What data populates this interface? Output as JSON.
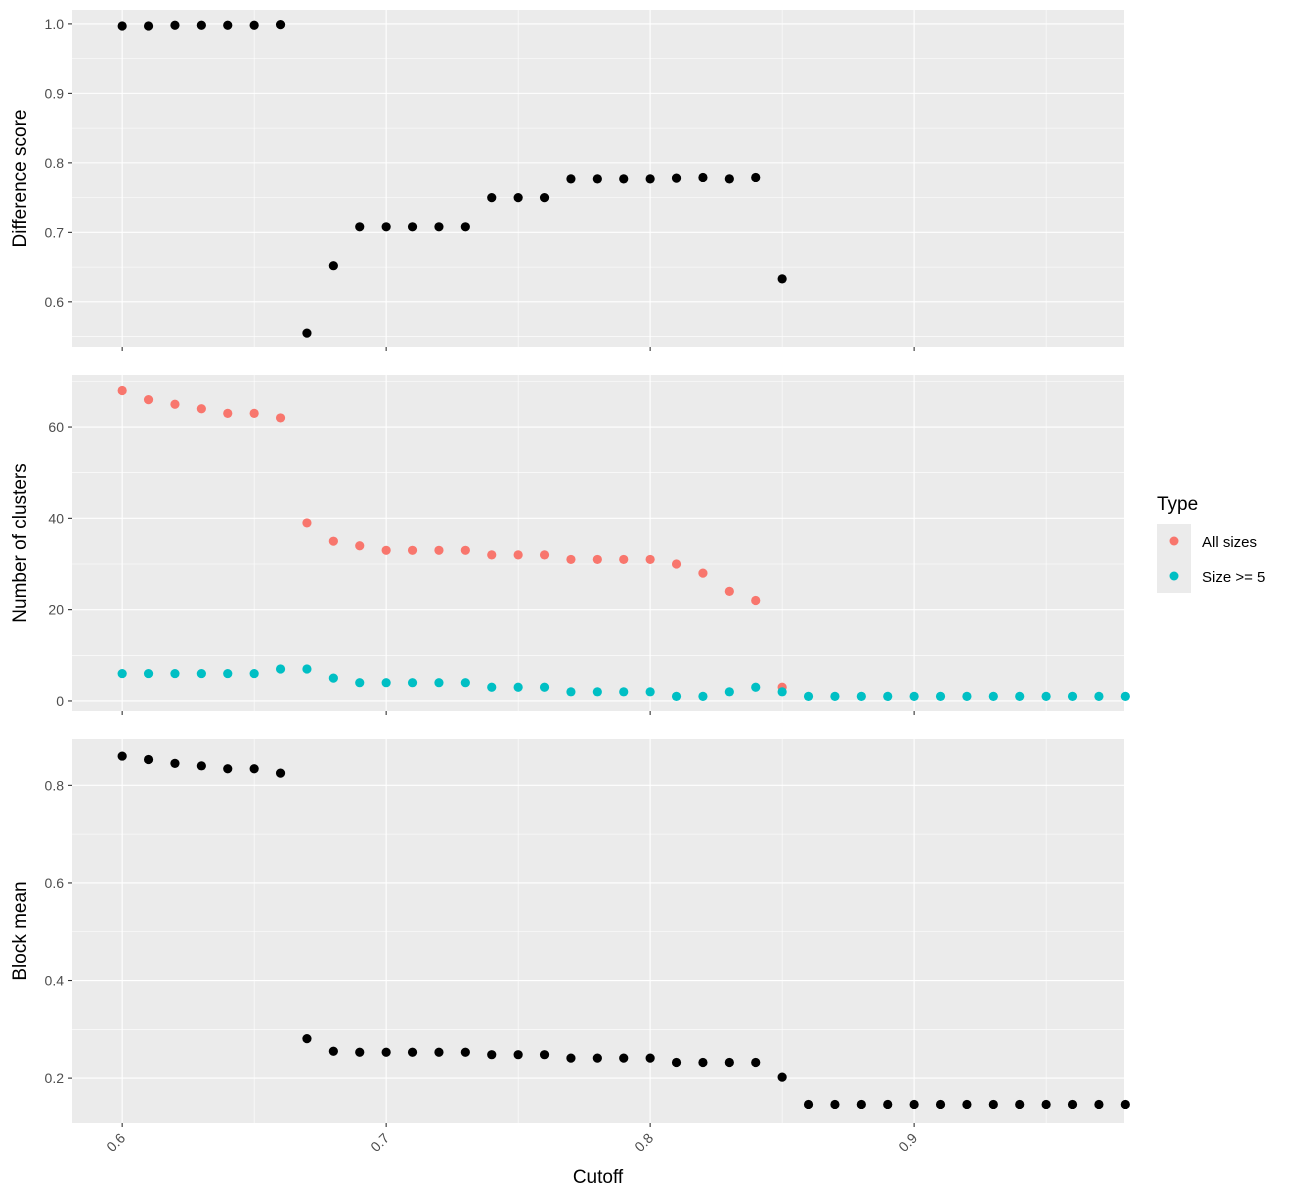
{
  "colors": {
    "panel_bg": "#EBEBEB",
    "grid_major": "#FFFFFF",
    "tick": "#333333",
    "tick_label": "#4D4D4D",
    "black_point": "#000000",
    "all_sizes": "#F8766D",
    "size_ge_5": "#00BFC4"
  },
  "xaxis": {
    "title": "Cutoff",
    "ticks": [
      0.6,
      0.7,
      0.8,
      0.9
    ],
    "tick_labels": [
      "0.6",
      "0.7",
      "0.8",
      "0.9"
    ],
    "tick_label_angle": -45
  },
  "legend": {
    "title": "Type",
    "placement": "right",
    "items": [
      {
        "label": "All sizes",
        "color": "#F8766D"
      },
      {
        "label": "Size >= 5",
        "color": "#00BFC4"
      }
    ]
  },
  "chart_data": [
    {
      "type": "scatter",
      "ylabel": "Difference score",
      "xlim": [
        0.581,
        0.9795
      ],
      "ylim": [
        0.535,
        1.02
      ],
      "yticks": [
        0.6,
        0.7,
        0.8,
        0.9,
        1.0
      ],
      "ytick_labels": [
        "0.6",
        "0.7",
        "0.8",
        "0.9",
        "1.0"
      ],
      "grid": true,
      "series": [
        {
          "color": "#000000",
          "x": [
            0.6,
            0.61,
            0.62,
            0.63,
            0.64,
            0.65,
            0.66,
            0.67,
            0.68,
            0.69,
            0.7,
            0.71,
            0.72,
            0.73,
            0.74,
            0.75,
            0.76,
            0.77,
            0.78,
            0.79,
            0.8,
            0.81,
            0.82,
            0.83,
            0.84,
            0.85
          ],
          "y": [
            0.997,
            0.997,
            0.998,
            0.998,
            0.998,
            0.998,
            0.999,
            0.555,
            0.652,
            0.708,
            0.708,
            0.708,
            0.708,
            0.708,
            0.75,
            0.75,
            0.75,
            0.777,
            0.777,
            0.777,
            0.777,
            0.778,
            0.779,
            0.777,
            0.779,
            0.633
          ]
        }
      ]
    },
    {
      "type": "scatter",
      "ylabel": "Number of clusters",
      "xlim": [
        0.581,
        0.9795
      ],
      "ylim": [
        -2.2,
        71.4
      ],
      "yticks": [
        0,
        20,
        40,
        60
      ],
      "ytick_labels": [
        "0",
        "20",
        "40",
        "60"
      ],
      "grid": true,
      "series": [
        {
          "name": "All sizes",
          "color": "#F8766D",
          "x": [
            0.6,
            0.61,
            0.62,
            0.63,
            0.64,
            0.65,
            0.66,
            0.67,
            0.68,
            0.69,
            0.7,
            0.71,
            0.72,
            0.73,
            0.74,
            0.75,
            0.76,
            0.77,
            0.78,
            0.79,
            0.8,
            0.81,
            0.82,
            0.83,
            0.84,
            0.85
          ],
          "y": [
            68,
            66,
            65,
            64,
            63,
            63,
            62,
            39,
            35,
            34,
            33,
            33,
            33,
            33,
            32,
            32,
            32,
            31,
            31,
            31,
            31,
            30,
            28,
            24,
            22,
            3
          ]
        },
        {
          "name": "Size >= 5",
          "color": "#00BFC4",
          "x": [
            0.6,
            0.61,
            0.62,
            0.63,
            0.64,
            0.65,
            0.66,
            0.67,
            0.68,
            0.69,
            0.7,
            0.71,
            0.72,
            0.73,
            0.74,
            0.75,
            0.76,
            0.77,
            0.78,
            0.79,
            0.8,
            0.81,
            0.82,
            0.83,
            0.84,
            0.85,
            0.86,
            0.87,
            0.88,
            0.89,
            0.9,
            0.91,
            0.92,
            0.93,
            0.94,
            0.95,
            0.96,
            0.97,
            0.98
          ],
          "y": [
            6,
            6,
            6,
            6,
            6,
            6,
            7,
            7,
            5,
            4,
            4,
            4,
            4,
            4,
            3,
            3,
            3,
            2,
            2,
            2,
            2,
            1,
            1,
            2,
            3,
            2,
            1,
            1,
            1,
            1,
            1,
            1,
            1,
            1,
            1,
            1,
            1,
            1,
            1
          ]
        }
      ]
    },
    {
      "type": "scatter",
      "ylabel": "Block mean",
      "xlim": [
        0.581,
        0.9795
      ],
      "ylim": [
        0.108,
        0.895
      ],
      "yticks": [
        0.2,
        0.4,
        0.6,
        0.8
      ],
      "ytick_labels": [
        "0.2",
        "0.4",
        "0.6",
        "0.8"
      ],
      "grid": true,
      "series": [
        {
          "color": "#000000",
          "x": [
            0.6,
            0.61,
            0.62,
            0.63,
            0.64,
            0.65,
            0.66,
            0.67,
            0.68,
            0.69,
            0.7,
            0.71,
            0.72,
            0.73,
            0.74,
            0.75,
            0.76,
            0.77,
            0.78,
            0.79,
            0.8,
            0.81,
            0.82,
            0.83,
            0.84,
            0.85,
            0.86,
            0.87,
            0.88,
            0.89,
            0.9,
            0.91,
            0.92,
            0.93,
            0.94,
            0.95,
            0.96,
            0.97,
            0.98
          ],
          "y": [
            0.86,
            0.853,
            0.845,
            0.84,
            0.834,
            0.834,
            0.825,
            0.281,
            0.255,
            0.253,
            0.253,
            0.253,
            0.253,
            0.253,
            0.248,
            0.248,
            0.248,
            0.241,
            0.241,
            0.241,
            0.241,
            0.232,
            0.232,
            0.232,
            0.232,
            0.202,
            0.146,
            0.146,
            0.146,
            0.146,
            0.146,
            0.146,
            0.146,
            0.146,
            0.146,
            0.146,
            0.146,
            0.146,
            0.146
          ]
        }
      ]
    }
  ]
}
